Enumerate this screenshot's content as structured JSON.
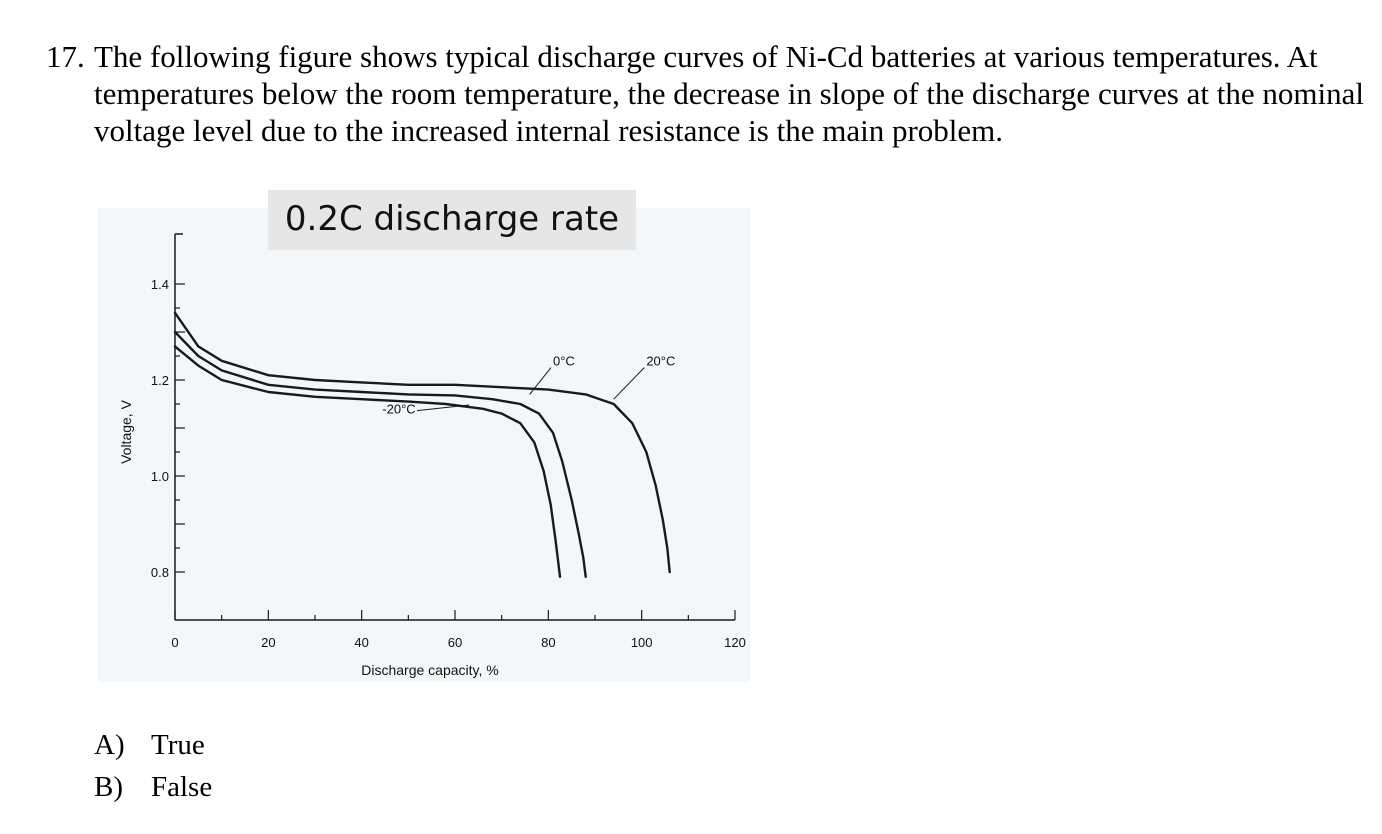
{
  "question": {
    "number": "17.",
    "text": "The following figure shows typical discharge curves of Ni-Cd batteries at various temperatures. At temperatures below the room temperature, the decrease in slope of the discharge curves at the nominal voltage level due to the increased internal resistance is the main problem."
  },
  "choices": [
    {
      "letter": "A)",
      "label": "True"
    },
    {
      "letter": "B)",
      "label": "False"
    }
  ],
  "colors": {
    "curve": "#1a1a1a",
    "scan_background": "#f3f7fa",
    "title_box": "#e6e6e6"
  },
  "chart_data": {
    "type": "line",
    "title": "0.2C discharge rate",
    "xlabel": "Discharge capacity, %",
    "ylabel": "Voltage, V",
    "xlim": [
      0,
      120
    ],
    "ylim": [
      0.7,
      1.5
    ],
    "x_ticks": [
      0,
      20,
      40,
      60,
      80,
      100,
      120
    ],
    "y_ticks": [
      0.8,
      1.0,
      1.2,
      1.4
    ],
    "grid": false,
    "legend": "none",
    "series": [
      {
        "name": "-20°C",
        "x": [
          0,
          5,
          10,
          20,
          30,
          40,
          50,
          58,
          66,
          70,
          74,
          77,
          79,
          80.5,
          81.5,
          82,
          82.5
        ],
        "y": [
          1.27,
          1.23,
          1.2,
          1.175,
          1.165,
          1.16,
          1.155,
          1.15,
          1.14,
          1.13,
          1.11,
          1.07,
          1.01,
          0.94,
          0.87,
          0.83,
          0.79
        ]
      },
      {
        "name": "0°C",
        "x": [
          0,
          5,
          10,
          20,
          30,
          40,
          50,
          60,
          68,
          74,
          78,
          81,
          83,
          85,
          86.5,
          87.5,
          88
        ],
        "y": [
          1.3,
          1.25,
          1.22,
          1.19,
          1.18,
          1.175,
          1.17,
          1.168,
          1.16,
          1.15,
          1.13,
          1.09,
          1.03,
          0.95,
          0.88,
          0.83,
          0.79
        ]
      },
      {
        "name": "20°C",
        "x": [
          0,
          5,
          10,
          20,
          30,
          40,
          50,
          60,
          70,
          80,
          88,
          94,
          98,
          101,
          103,
          104.5,
          105.5,
          106
        ],
        "y": [
          1.34,
          1.27,
          1.24,
          1.21,
          1.2,
          1.195,
          1.19,
          1.19,
          1.185,
          1.18,
          1.17,
          1.15,
          1.11,
          1.05,
          0.98,
          0.91,
          0.85,
          0.8
        ]
      }
    ],
    "annotations": [
      {
        "text": "-20°C",
        "series": "-20°C"
      },
      {
        "text": "0°C",
        "series": "0°C"
      },
      {
        "text": "20°C",
        "series": "20°C"
      }
    ]
  }
}
